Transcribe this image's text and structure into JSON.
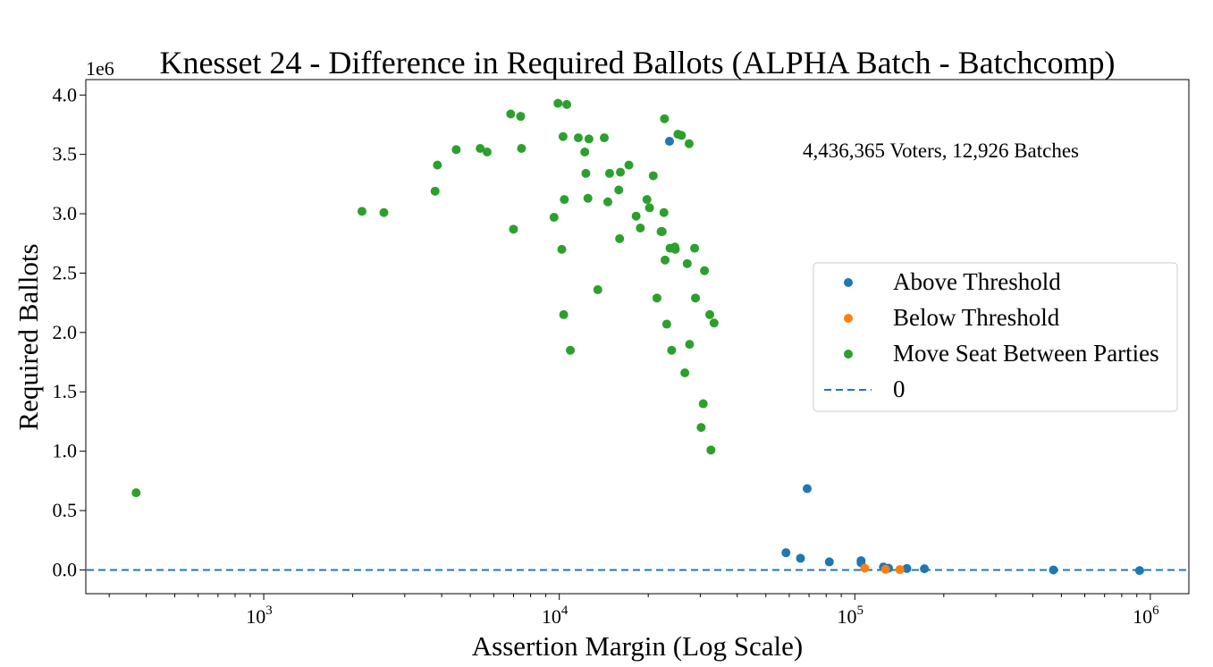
{
  "chart_data": {
    "type": "scatter",
    "title": "Knesset 24 - Difference in Required Ballots (ALPHA Batch - Batchcomp)",
    "xlabel": "Assertion Margin (Log Scale)",
    "ylabel": "Required Ballots",
    "y_offset_label": "1e6",
    "x_scale": "log",
    "xlim": [
      250,
      1350000
    ],
    "ylim": [
      -200000,
      4130000
    ],
    "x_ticks": [
      {
        "value": 1000,
        "base": "10",
        "exp": "3"
      },
      {
        "value": 10000,
        "base": "10",
        "exp": "4"
      },
      {
        "value": 100000,
        "base": "10",
        "exp": "5"
      },
      {
        "value": 1000000,
        "base": "10",
        "exp": "6"
      }
    ],
    "y_ticks": [
      {
        "value": 0,
        "label": "0.0"
      },
      {
        "value": 500000,
        "label": "0.5"
      },
      {
        "value": 1000000,
        "label": "1.0"
      },
      {
        "value": 1500000,
        "label": "1.5"
      },
      {
        "value": 2000000,
        "label": "2.0"
      },
      {
        "value": 2500000,
        "label": "2.5"
      },
      {
        "value": 3000000,
        "label": "3.0"
      },
      {
        "value": 3500000,
        "label": "3.5"
      },
      {
        "value": 4000000,
        "label": "4.0"
      }
    ],
    "annotation": "4,436,365 Voters, 12,926 Batches",
    "legend_position": "center-right",
    "series": [
      {
        "name": "Above Threshold",
        "color": "#1f77b4",
        "kind": "points",
        "points": [
          [
            23600,
            3610000
          ],
          [
            69000,
            685000
          ],
          [
            58500,
            145000
          ],
          [
            65500,
            98000
          ],
          [
            82000,
            68000
          ],
          [
            105000,
            78000
          ],
          [
            105000,
            60000
          ],
          [
            125000,
            25000
          ],
          [
            130000,
            15000
          ],
          [
            150000,
            12000
          ],
          [
            172000,
            10000
          ],
          [
            470000,
            0
          ],
          [
            920000,
            -5000
          ]
        ]
      },
      {
        "name": "Below Threshold",
        "color": "#ff7f0e",
        "kind": "points",
        "points": [
          [
            108000,
            15000
          ],
          [
            127000,
            5000
          ],
          [
            142000,
            3000
          ]
        ]
      },
      {
        "name": "Move Seat Between Parties",
        "color": "#2ca02c",
        "kind": "points",
        "points": [
          [
            370,
            650000
          ],
          [
            2150,
            3020000
          ],
          [
            2550,
            3010000
          ],
          [
            3800,
            3190000
          ],
          [
            3870,
            3410000
          ],
          [
            4480,
            3540000
          ],
          [
            5400,
            3550000
          ],
          [
            5700,
            3520000
          ],
          [
            6850,
            3840000
          ],
          [
            7000,
            2870000
          ],
          [
            7400,
            3820000
          ],
          [
            7450,
            3550000
          ],
          [
            9600,
            2970000
          ],
          [
            9900,
            3930000
          ],
          [
            10200,
            2700000
          ],
          [
            10300,
            3650000
          ],
          [
            10350,
            2150000
          ],
          [
            10400,
            3120000
          ],
          [
            10600,
            3920000
          ],
          [
            10900,
            1850000
          ],
          [
            11600,
            3640000
          ],
          [
            12200,
            3520000
          ],
          [
            12300,
            3340000
          ],
          [
            12500,
            3130000
          ],
          [
            12600,
            3630000
          ],
          [
            13500,
            2360000
          ],
          [
            14200,
            3640000
          ],
          [
            14600,
            3100000
          ],
          [
            14800,
            3340000
          ],
          [
            15900,
            3200000
          ],
          [
            16000,
            2790000
          ],
          [
            16100,
            3350000
          ],
          [
            17200,
            3410000
          ],
          [
            18200,
            2980000
          ],
          [
            18800,
            2880000
          ],
          [
            19800,
            3120000
          ],
          [
            20200,
            3050000
          ],
          [
            20800,
            3320000
          ],
          [
            21400,
            2290000
          ],
          [
            22100,
            2850000
          ],
          [
            22300,
            2850000
          ],
          [
            22600,
            3010000
          ],
          [
            22700,
            3800000
          ],
          [
            22800,
            2610000
          ],
          [
            23100,
            2070000
          ],
          [
            23700,
            2710000
          ],
          [
            24000,
            1850000
          ],
          [
            24600,
            2720000
          ],
          [
            24700,
            2700000
          ],
          [
            25200,
            3670000
          ],
          [
            25900,
            3660000
          ],
          [
            26600,
            1660000
          ],
          [
            27100,
            2580000
          ],
          [
            27500,
            3590000
          ],
          [
            27600,
            1900000
          ],
          [
            28700,
            2710000
          ],
          [
            28900,
            2290000
          ],
          [
            30200,
            1200000
          ],
          [
            30700,
            1400000
          ],
          [
            31000,
            2520000
          ],
          [
            32300,
            2150000
          ],
          [
            32600,
            1010000
          ],
          [
            33400,
            2080000
          ]
        ]
      },
      {
        "name": "0",
        "color": "#1f77b4",
        "kind": "hline",
        "y": 0,
        "dashed": true
      }
    ]
  }
}
